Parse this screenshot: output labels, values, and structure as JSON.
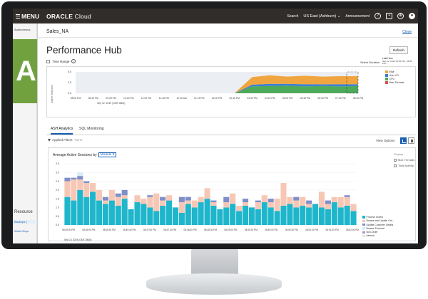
{
  "topbar": {
    "menu_label": "MENU",
    "brand_bold": "ORACLE",
    "brand_rest": " Cloud",
    "search": "Search",
    "region": "US East (Ashburn)",
    "announcements": "Announcement"
  },
  "left_page": {
    "crumb": "Autonomous",
    "big_letter": "A",
    "resources": "Resource",
    "link1": "Backups (",
    "link2": "Work Requ"
  },
  "drawer": {
    "title": "Sales_NA",
    "close": "Close",
    "heading": "Performance Hub",
    "refresh": "Refresh",
    "time_range": "Time Range",
    "select_duration": "Select Duration",
    "last_hour_label": "Last Hour",
    "last_hour_range": "Sep 12, 2019 10:26 PM - 08:30 PM"
  },
  "timeline": {
    "y_label": "Active Sessions",
    "yticks": [
      "5.0",
      "2.5",
      "0.0"
    ],
    "xticks": [
      "08:00 PM",
      "08:45 PM",
      "09:30 PM",
      "10:15 PM",
      "11:00 PM",
      "11:45 PM",
      "12:30 AM",
      "01:15 PM",
      "02:00 PM",
      "02:45 PM",
      "03:30 PM",
      "04:15 PM",
      "05:00 PM",
      "05:45 PM",
      "06:30 PM",
      "07:15 PM",
      "08:00 PM"
    ],
    "x_date": "Sep 12, 2019 (GMT-0800)",
    "legend": [
      "Wait",
      "User I/O",
      "CPU",
      "Max Threads"
    ],
    "colors": {
      "wait": "#f0a540",
      "userio": "#3b7fd1",
      "cpu": "#4ea95b",
      "maxthreads": "#d9534f"
    }
  },
  "tabs": {
    "ash": "ASH Analytics",
    "sql": "SQL Monitoring"
  },
  "filters": {
    "applied": "Applied Filters",
    "none": "None",
    "view_options": "View Options"
  },
  "ash": {
    "aas_label": "Average Active Sessions by",
    "dimension": "Module",
    "display_label": "Display",
    "max_threads": "Max Threads",
    "total_activity": "Total Activity",
    "x_date": "Sep 12 2019 (GMT-0800)",
    "legend": [
      "Process Orders",
      "Browse and Update Ord...",
      "Update Customer Details",
      "Browse Products",
      "Non-Order",
      "Internal"
    ],
    "colors": [
      "#1fb6cc",
      "#f7c7b5",
      "#7e8fc9",
      "#d7ecf4",
      "#b48fd6",
      "#e3e3e3"
    ]
  },
  "chart_data": [
    {
      "type": "area",
      "title": "",
      "xlabel": "",
      "ylabel": "Active Sessions",
      "ylim": [
        0,
        5
      ],
      "x": [
        "08:00 PM",
        "08:45 PM",
        "09:30 PM",
        "10:15 PM",
        "11:00 PM",
        "11:45 PM",
        "12:30 AM",
        "01:15 PM",
        "02:00 PM",
        "02:45 PM",
        "03:30 PM",
        "04:15 PM",
        "05:00 PM",
        "05:45 PM",
        "06:30 PM",
        "07:15 PM",
        "08:00 PM"
      ],
      "series": [
        {
          "name": "CPU",
          "values": [
            0,
            0,
            0,
            0,
            0,
            0,
            0,
            0,
            0,
            0,
            1.6,
            1.7,
            1.8,
            1.6,
            1.7,
            1.6,
            1.7
          ]
        },
        {
          "name": "User I/O",
          "values": [
            0,
            0,
            0,
            0,
            0,
            0,
            0,
            0,
            0,
            0,
            0.4,
            0.5,
            0.4,
            0.5,
            0.4,
            0.5,
            0.4
          ]
        },
        {
          "name": "Wait",
          "values": [
            0,
            0,
            0,
            0,
            0,
            0,
            0,
            0,
            0,
            0,
            1.8,
            2.0,
            1.7,
            2.0,
            1.8,
            1.9,
            1.9
          ]
        }
      ],
      "legend_position": "right"
    },
    {
      "type": "bar",
      "stacked": true,
      "title": "",
      "xlabel": "",
      "ylabel": "",
      "ylim": [
        0,
        3.5
      ],
      "yticks": [
        "3.5",
        "3.0",
        "2.5",
        "2.0",
        "1.5",
        "1.0",
        "0.5",
        "0.0"
      ],
      "x_tick_labels": [
        "08:45:00 PM",
        "08:46:00 PM",
        "08:46:30 PM",
        "08:46:45 PM",
        "08:47:00 PM",
        "08:47:30 PM",
        "08:48:00 PM",
        "08:48:30 PM",
        "08:49:00 PM",
        "08:49:30 PM",
        "08:50:00 PM",
        "08:50:30 PM",
        "08:51:00 PM",
        "08:51:30 PM",
        "08:52:00 PM"
      ],
      "series": [
        {
          "name": "Process Orders",
          "values": [
            1.6,
            1.4,
            2.0,
            1.6,
            1.9,
            1.4,
            1.2,
            1.4,
            1.1,
            1.5,
            0.9,
            1.3,
            1.2,
            1.0,
            0.8,
            1.1,
            1.4,
            1.0,
            0.7,
            1.2,
            1.0,
            1.3,
            1.5,
            1.1,
            0.9,
            1.0,
            1.2,
            0.8,
            1.1,
            1.0,
            0.9,
            1.3,
            1.0,
            0.8,
            1.1,
            1.2,
            1.0,
            1.1,
            1.0,
            1.2,
            1.0,
            0.9,
            1.3,
            1.0,
            1.1,
            0.8
          ]
        },
        {
          "name": "Browse and Update Ord...",
          "values": [
            0.9,
            1.2,
            0.6,
            0.8,
            0.5,
            0.6,
            0.2,
            0.6,
            0.5,
            0.2,
            0.0,
            0.4,
            0.3,
            0.6,
            1.0,
            0.3,
            0.3,
            0.0,
            0.6,
            0.2,
            0.4,
            0.3,
            0.6,
            0.2,
            0.0,
            0.3,
            0.6,
            0.3,
            0.2,
            0.0,
            0.4,
            0.4,
            0.3,
            0.7,
            1.3,
            0.4,
            0.4,
            0.5,
            0.2,
            0.0,
            0.9,
            0.3,
            0.3,
            0.6,
            0.5,
            0.4
          ]
        },
        {
          "name": "Update Customer Details",
          "values": [
            0.2,
            0.1,
            0.2,
            0.1,
            0.0,
            0.0,
            0.2,
            0.0,
            0.2,
            0.3,
            0.0,
            0.0,
            0.0,
            0.1,
            0.0,
            0.2,
            0.0,
            0.0,
            0.3,
            0.2,
            0.0,
            0.0,
            0.0,
            0.1,
            0.0,
            0.3,
            0.0,
            0.0,
            0.2,
            0.0,
            0.1,
            0.0,
            0.2,
            0.0,
            0.0,
            0.0,
            0.2,
            0.0,
            0.2,
            0.0,
            0.0,
            0.2,
            0.0,
            0.0,
            0.1,
            0.0
          ]
        },
        {
          "name": "Browse Products",
          "values": [
            0.0,
            0.0,
            0.2,
            0.0,
            0.0,
            0.0,
            0.0,
            0.0,
            0.0,
            0.0,
            0.0,
            0.0,
            0.0,
            0.0,
            0.0,
            0.0,
            0.0,
            0.0,
            0.0,
            0.0,
            0.0,
            0.0,
            0.0,
            0.0,
            0.0,
            0.0,
            0.0,
            0.0,
            0.0,
            0.0,
            0.0,
            0.0,
            0.0,
            0.0,
            0.0,
            0.0,
            0.0,
            0.0,
            0.0,
            0.0,
            0.0,
            0.0,
            0.0,
            0.0,
            0.0,
            0.0
          ]
        },
        {
          "name": "Non-Order",
          "values": [
            0.0,
            0.0,
            0.0,
            0.0,
            0.0,
            0.0,
            0.0,
            0.0,
            0.0,
            0.0,
            0.0,
            0.0,
            0.0,
            0.0,
            0.0,
            0.0,
            0.0,
            0.0,
            0.0,
            0.0,
            0.0,
            0.0,
            0.0,
            0.0,
            0.0,
            0.0,
            0.0,
            0.0,
            0.0,
            0.0,
            0.0,
            0.0,
            0.0,
            0.0,
            0.0,
            0.0,
            0.0,
            0.0,
            0.0,
            0.0,
            0.0,
            0.0,
            0.0,
            0.0,
            0.0,
            0.0
          ]
        },
        {
          "name": "Internal",
          "values": [
            0.0,
            0.0,
            0.0,
            0.0,
            0.0,
            0.0,
            0.0,
            0.0,
            0.0,
            0.0,
            0.0,
            0.0,
            0.0,
            0.0,
            0.0,
            0.0,
            0.0,
            0.0,
            0.0,
            0.0,
            0.0,
            0.0,
            0.0,
            0.0,
            0.0,
            0.0,
            0.0,
            0.0,
            0.0,
            0.0,
            0.0,
            0.0,
            0.0,
            0.0,
            0.0,
            0.0,
            0.0,
            0.0,
            0.0,
            0.0,
            0.0,
            0.0,
            0.0,
            0.0,
            0.0,
            0.0
          ]
        }
      ],
      "legend_position": "right"
    }
  ]
}
